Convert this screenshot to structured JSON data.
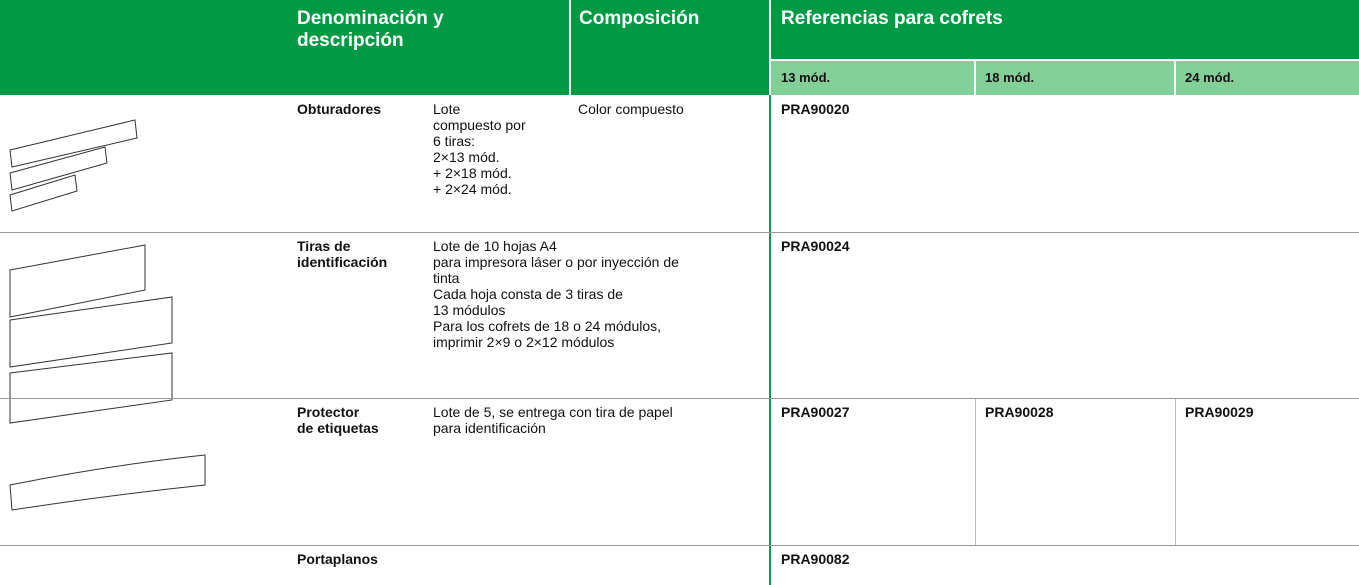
{
  "header": {
    "denominacion": "Denominación y descripción",
    "composicion": "Composición",
    "referencias": "Referencias para cofrets",
    "sizes": [
      "13 mód.",
      "18 mód.",
      "24 mód."
    ]
  },
  "rows": [
    {
      "name": [
        "Obturadores"
      ],
      "description": [
        "Lote",
        "compuesto por",
        "6 tiras:",
        "2×13 mód.",
        "+ 2×18 mód.",
        "+ 2×24 mód."
      ],
      "composition": "Color compuesto",
      "refs": [
        "PRA90020"
      ]
    },
    {
      "name": [
        "Tiras de",
        "identificación"
      ],
      "description": [
        "Lote de 10 hojas A4",
        "para impresora láser o por inyección de",
        "tinta",
        "Cada hoja consta de 3 tiras de",
        "13 módulos",
        "Para los cofrets de 18 o 24 módulos,",
        "imprimir 2×9 o 2×12 módulos"
      ],
      "refs": [
        "PRA90024"
      ]
    },
    {
      "name": [
        "Protector",
        "de etiquetas"
      ],
      "description": [
        "Lote de 5, se entrega con tira de papel",
        "para identificación"
      ],
      "refs": [
        "PRA90027",
        "PRA90028",
        "PRA90029"
      ]
    },
    {
      "name": [
        "Portaplanos"
      ],
      "refs": [
        "PRA90082"
      ]
    }
  ]
}
